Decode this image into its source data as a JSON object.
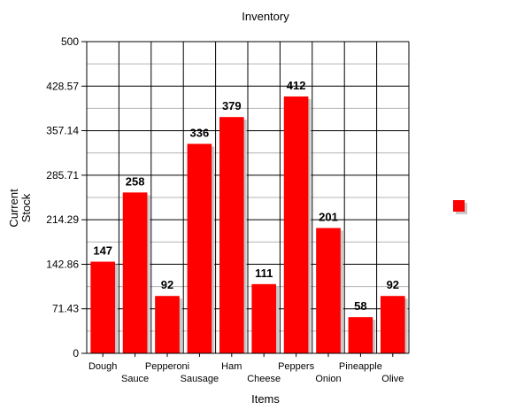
{
  "chart_data": {
    "type": "bar",
    "title": "Inventory",
    "xlabel": "Items",
    "ylabel": [
      "Current",
      "Stock"
    ],
    "categories": [
      "Dough",
      "Sauce",
      "Pepperoni",
      "Sausage",
      "Ham",
      "Cheese",
      "Peppers",
      "Onion",
      "Pineapple",
      "Olive"
    ],
    "values": [
      147,
      258,
      92,
      336,
      379,
      111,
      412,
      201,
      58,
      92
    ],
    "ylim": [
      0,
      500
    ],
    "yticks": [
      "0",
      "71.43",
      "142.86",
      "214.29",
      "285.71",
      "357.14",
      "428.57",
      "500"
    ],
    "grid": true,
    "legend_position": "right",
    "colors": {
      "bar": "#ff0000",
      "shadow": "#c8c8c8",
      "grid_major": "#000000",
      "grid_minor": "#b4b4b4"
    }
  }
}
